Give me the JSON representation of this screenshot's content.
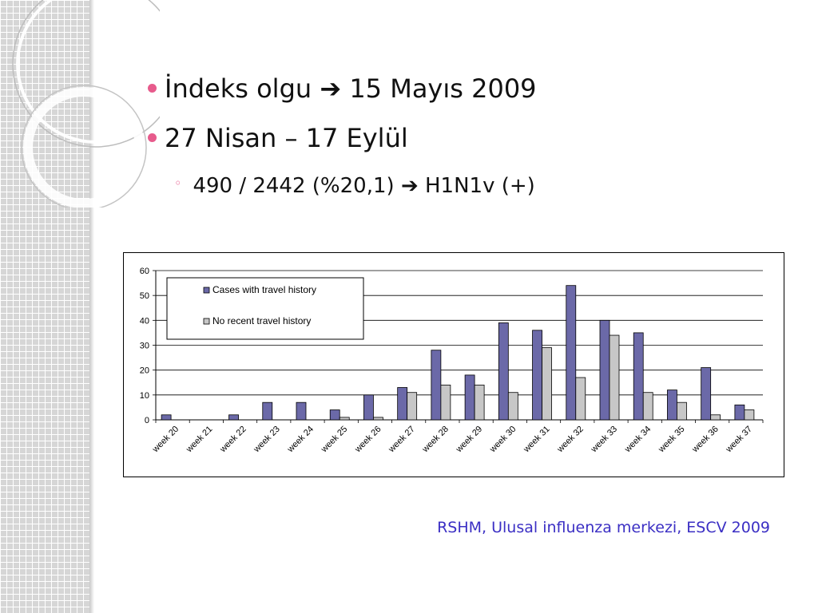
{
  "slide": {
    "bullets": [
      {
        "level": 1,
        "before": "İndeks olgu",
        "arrow": "➔",
        "after": "15 Mayıs 2009"
      },
      {
        "level": 1,
        "before": "27 Nisan – 17 Eylül",
        "arrow": "",
        "after": ""
      },
      {
        "level": 2,
        "before": "490 / 2442 (%20,1)",
        "arrow": "➔",
        "after": "H1N1v (+)"
      }
    ],
    "source": "RSHM, Ulusal influenza merkezi, ESCV 2009"
  },
  "colors": {
    "bullet": "#e75b8c",
    "series_travel": "#6b69a8",
    "series_no_travel": "#c7c7c7",
    "source_text": "#3b2fc4"
  },
  "chart_data": {
    "type": "bar",
    "title": "",
    "xlabel": "",
    "ylabel": "",
    "ylim": [
      0,
      60
    ],
    "yticks": [
      0,
      10,
      20,
      30,
      40,
      50,
      60
    ],
    "grid": true,
    "legend": "top-left",
    "categories": [
      "week 20",
      "week 21",
      "week 22",
      "week 23",
      "week 24",
      "week 25",
      "week 26",
      "week 27",
      "week 28",
      "week 29",
      "week 30",
      "week 31",
      "week 32",
      "week 33",
      "week 34",
      "week 35",
      "week 36",
      "week 37"
    ],
    "series": [
      {
        "name": "Cases with travel history",
        "values": [
          2,
          0,
          2,
          7,
          7,
          4,
          10,
          13,
          28,
          18,
          39,
          36,
          54,
          40,
          35,
          12,
          21,
          6
        ]
      },
      {
        "name": "No recent travel history",
        "values": [
          0,
          0,
          0,
          0,
          0,
          1,
          1,
          11,
          14,
          14,
          11,
          29,
          17,
          34,
          11,
          7,
          2,
          4
        ]
      }
    ]
  }
}
